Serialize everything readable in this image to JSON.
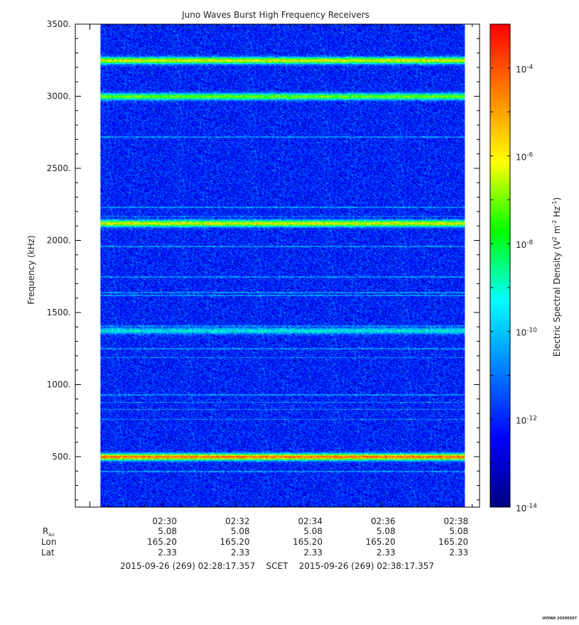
{
  "chart_data": {
    "type": "heatmap",
    "title": "Juno Waves Burst High Frequency Receivers",
    "ylabel": "Frequency (kHz)",
    "ylim": [
      150,
      3500
    ],
    "y_ticks": [
      {
        "value": 500,
        "label": "500."
      },
      {
        "value": 1000,
        "label": "1000."
      },
      {
        "value": 1500,
        "label": "1500."
      },
      {
        "value": 2000,
        "label": "2000."
      },
      {
        "value": 2500,
        "label": "2500."
      },
      {
        "value": 3000,
        "label": "3000."
      },
      {
        "value": 3500,
        "label": "3500."
      }
    ],
    "x_ticks": [
      {
        "time": "02:30",
        "R_AU": "5.08",
        "Lon": "165.20",
        "Lat": "2.33"
      },
      {
        "time": "02:32",
        "R_AU": "5.08",
        "Lon": "165.20",
        "Lat": "2.33"
      },
      {
        "time": "02:34",
        "R_AU": "5.08",
        "Lon": "165.20",
        "Lat": "2.33"
      },
      {
        "time": "02:36",
        "R_AU": "5.08",
        "Lon": "165.20",
        "Lat": "2.33"
      },
      {
        "time": "02:38",
        "R_AU": "5.08",
        "Lon": "165.20",
        "Lat": "2.33"
      }
    ],
    "x_range_minutes": [
      27.6,
      38.7
    ],
    "data_range_minutes": [
      28.29,
      38.29
    ],
    "ephemeris_labels": {
      "r": "R",
      "r_sub": "AU",
      "lon": "Lon",
      "lat": "Lat"
    },
    "emission_bands_khz": [
      {
        "center": 3250,
        "level": 0.72
      },
      {
        "center": 3000,
        "level": 0.62
      },
      {
        "center": 2120,
        "level": 0.72
      },
      {
        "center": 1375,
        "level": 0.42
      },
      {
        "center": 500,
        "level": 0.88
      }
    ],
    "narrow_lines_khz": [
      2720,
      2230,
      2170,
      1960,
      1750,
      1640,
      1620,
      1410,
      1250,
      1190,
      930,
      880,
      830,
      760,
      400
    ],
    "colorbar": {
      "label": "Electric Spectral Density",
      "unit_text": "V² m⁻² Hz⁻¹",
      "unit_plain": "(V",
      "unit_sup1": "2",
      "unit_mid1": " m",
      "unit_sup2": "-2",
      "unit_mid2": " Hz",
      "unit_sup3": "-1",
      "unit_close": ")",
      "log_range": [
        -14,
        -3
      ],
      "ticks": [
        {
          "base": "10",
          "exp": "-4",
          "value": -4
        },
        {
          "base": "10",
          "exp": "-6",
          "value": -6
        },
        {
          "base": "10",
          "exp": "-8",
          "value": -8
        },
        {
          "base": "10",
          "exp": "-10",
          "value": -10
        },
        {
          "base": "10",
          "exp": "-12",
          "value": -12
        },
        {
          "base": "10",
          "exp": "-14",
          "value": -14
        }
      ],
      "colors": [
        "#000080",
        "#0000ff",
        "#0080ff",
        "#00ffff",
        "#00ff00",
        "#ffff00",
        "#ff8000",
        "#ff0000"
      ]
    },
    "time_range": {
      "start": "2015-09-26 (269) 02:28:17.357",
      "label": "SCET",
      "end": "2015-09-26 (269) 02:38:17.357"
    },
    "stamp": "UIOWA 20200307"
  }
}
